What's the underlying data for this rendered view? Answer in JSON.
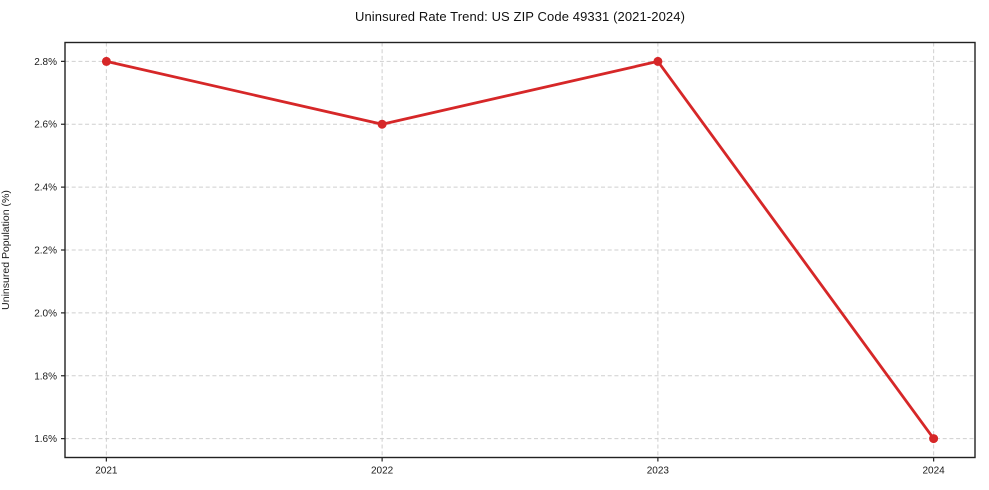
{
  "chart_data": {
    "type": "line",
    "title": "Uninsured Rate Trend: US ZIP Code 49331 (2021-2024)",
    "xlabel": "",
    "ylabel": "Uninsured Population (%)",
    "x": [
      2021,
      2022,
      2023,
      2024
    ],
    "series": [
      {
        "name": "Uninsured rate",
        "values": [
          2.8,
          2.6,
          2.8,
          1.6
        ],
        "color": "#d62728",
        "marker": "circle"
      }
    ],
    "xticks": [
      2021,
      2022,
      2023,
      2024
    ],
    "xtick_labels": [
      "2021",
      "2022",
      "2023",
      "2024"
    ],
    "yticks": [
      1.6,
      1.8,
      2.0,
      2.2,
      2.4,
      2.6,
      2.8
    ],
    "ytick_labels": [
      "1.6%",
      "1.8%",
      "2.0%",
      "2.2%",
      "2.4%",
      "2.6%",
      "2.8%"
    ],
    "xlim": [
      2020.85,
      2024.15
    ],
    "ylim": [
      1.54,
      2.86
    ],
    "grid": true,
    "legend_position": "none",
    "colors": {
      "line": "#d62728",
      "grid": "#cfcfcf",
      "axis": "#222222",
      "text": "#1a1a1a",
      "background": "#ffffff"
    }
  }
}
